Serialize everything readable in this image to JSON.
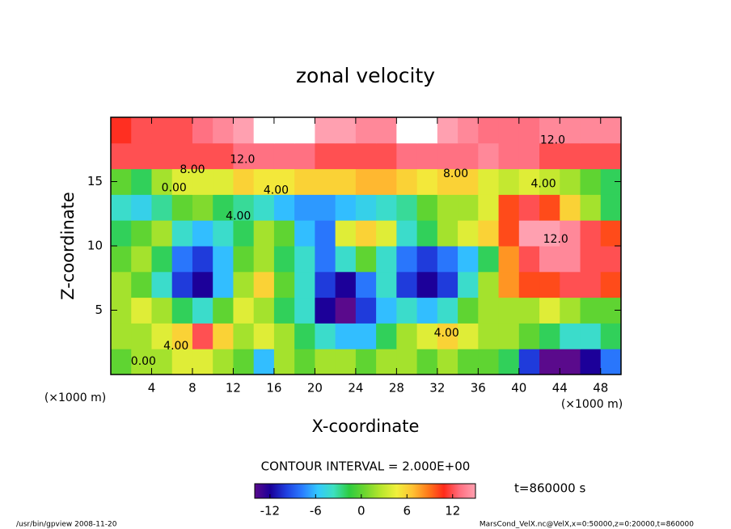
{
  "chart_data": {
    "type": "heatmap",
    "title": "zonal velocity",
    "x_label": "X-coordinate",
    "y_label": "Z-coordinate",
    "unit_label": "(×1000 m)",
    "x": [
      1,
      3,
      5,
      7,
      9,
      11,
      13,
      15,
      17,
      19,
      21,
      23,
      25,
      27,
      29,
      31,
      33,
      35,
      37,
      39,
      41,
      43,
      45,
      47,
      49
    ],
    "z": [
      1,
      3,
      5,
      7,
      9,
      11,
      13,
      15,
      17,
      19
    ],
    "values": [
      [
        0,
        2,
        2,
        4,
        4,
        2,
        0,
        -6,
        2,
        0,
        2,
        2,
        0,
        2,
        2,
        0,
        2,
        0,
        0,
        -2,
        -10,
        -14,
        -14,
        -12,
        -8
      ],
      [
        2,
        2,
        4,
        6,
        12,
        6,
        2,
        4,
        2,
        -2,
        -4,
        -6,
        -6,
        -2,
        2,
        4,
        6,
        4,
        2,
        2,
        0,
        -2,
        -4,
        -4,
        -2
      ],
      [
        2,
        4,
        2,
        -2,
        -4,
        0,
        4,
        2,
        -2,
        -4,
        -12,
        -14,
        -10,
        -6,
        -4,
        -6,
        -4,
        0,
        2,
        2,
        2,
        4,
        2,
        0,
        0
      ],
      [
        2,
        0,
        -4,
        -10,
        -12,
        -6,
        2,
        6,
        0,
        -4,
        -10,
        -12,
        -8,
        -4,
        -10,
        -12,
        -10,
        -4,
        2,
        8,
        10,
        10,
        12,
        12,
        10
      ],
      [
        0,
        2,
        -2,
        -8,
        -10,
        -6,
        0,
        2,
        -2,
        -4,
        -8,
        -4,
        0,
        -4,
        -8,
        -10,
        -8,
        -6,
        -2,
        8,
        12,
        14,
        14,
        12,
        12
      ],
      [
        -2,
        0,
        2,
        -4,
        -6,
        -4,
        -2,
        2,
        0,
        -6,
        -8,
        4,
        6,
        4,
        -4,
        -2,
        2,
        4,
        6,
        10,
        15,
        15,
        14,
        12,
        10
      ],
      [
        -4,
        -5,
        -3,
        0,
        1,
        -2,
        -3,
        -4,
        -6,
        -7,
        -7,
        -6,
        -5,
        -4,
        -3,
        0,
        2,
        2,
        4,
        10,
        12,
        10,
        6,
        2,
        -2
      ],
      [
        0,
        -2,
        2,
        4,
        4,
        4,
        6,
        5,
        5,
        6,
        6,
        6,
        7,
        7,
        6,
        5,
        6,
        6,
        4,
        3,
        4,
        3,
        2,
        0,
        -2
      ],
      [
        12,
        12,
        12,
        12,
        12,
        12,
        13,
        13,
        13,
        13,
        12,
        12,
        12,
        12,
        13,
        13,
        13,
        13,
        14,
        13,
        13,
        12,
        12,
        12,
        12
      ],
      [
        11,
        12,
        12,
        12,
        13,
        14,
        15,
        16,
        16,
        16,
        15,
        15,
        14,
        14,
        16,
        16,
        15,
        14,
        13,
        13,
        13,
        14,
        14,
        14,
        14
      ]
    ],
    "xlim": [
      0,
      50
    ],
    "ylim": [
      0,
      20
    ],
    "xticks": [
      4,
      8,
      12,
      16,
      20,
      24,
      28,
      32,
      36,
      40,
      44,
      48
    ],
    "yticks": [
      5,
      10,
      15
    ],
    "clim": [
      -14,
      15
    ],
    "cticks": [
      -12,
      -6,
      0,
      6,
      12
    ],
    "colors": [
      "#5a0a8c",
      "#1a0099",
      "#1f3fe0",
      "#2a7cff",
      "#33c8ff",
      "#3de0c0",
      "#2ecc40",
      "#6fd62e",
      "#b8e62d",
      "#f0f03c",
      "#ffc233",
      "#ff7a1a",
      "#ff2a1a",
      "#ff6f80",
      "#ffa0b0"
    ],
    "annotations": [
      {
        "text": "12.0",
        "x": 12.9,
        "z": 16.7
      },
      {
        "text": "12.0",
        "x": 43.3,
        "z": 18.2
      },
      {
        "text": "8.00",
        "x": 8,
        "z": 15.9
      },
      {
        "text": "8.00",
        "x": 33.8,
        "z": 15.6
      },
      {
        "text": "4.00",
        "x": 16.2,
        "z": 14.3
      },
      {
        "text": "4.00",
        "x": 12.5,
        "z": 12.3
      },
      {
        "text": "4.00",
        "x": 42.4,
        "z": 14.8
      },
      {
        "text": "0.00",
        "x": 6.2,
        "z": 14.5
      },
      {
        "text": "4.00",
        "x": 32.9,
        "z": 3.2
      },
      {
        "text": "4.00",
        "x": 6.4,
        "z": 2.2
      },
      {
        "text": "0.00",
        "x": 3.2,
        "z": 1
      },
      {
        "text": "12.0",
        "x": 43.6,
        "z": 10.5
      }
    ],
    "contour_interval": "CONTOUR INTERVAL = 2.000E+00",
    "time_label": "t=860000 s",
    "footer_left": "/usr/bin/gpview  2008-11-20",
    "footer_right": "MarsCond_VelX.nc@VelX,x=0:50000,z=0:20000,t=860000"
  }
}
